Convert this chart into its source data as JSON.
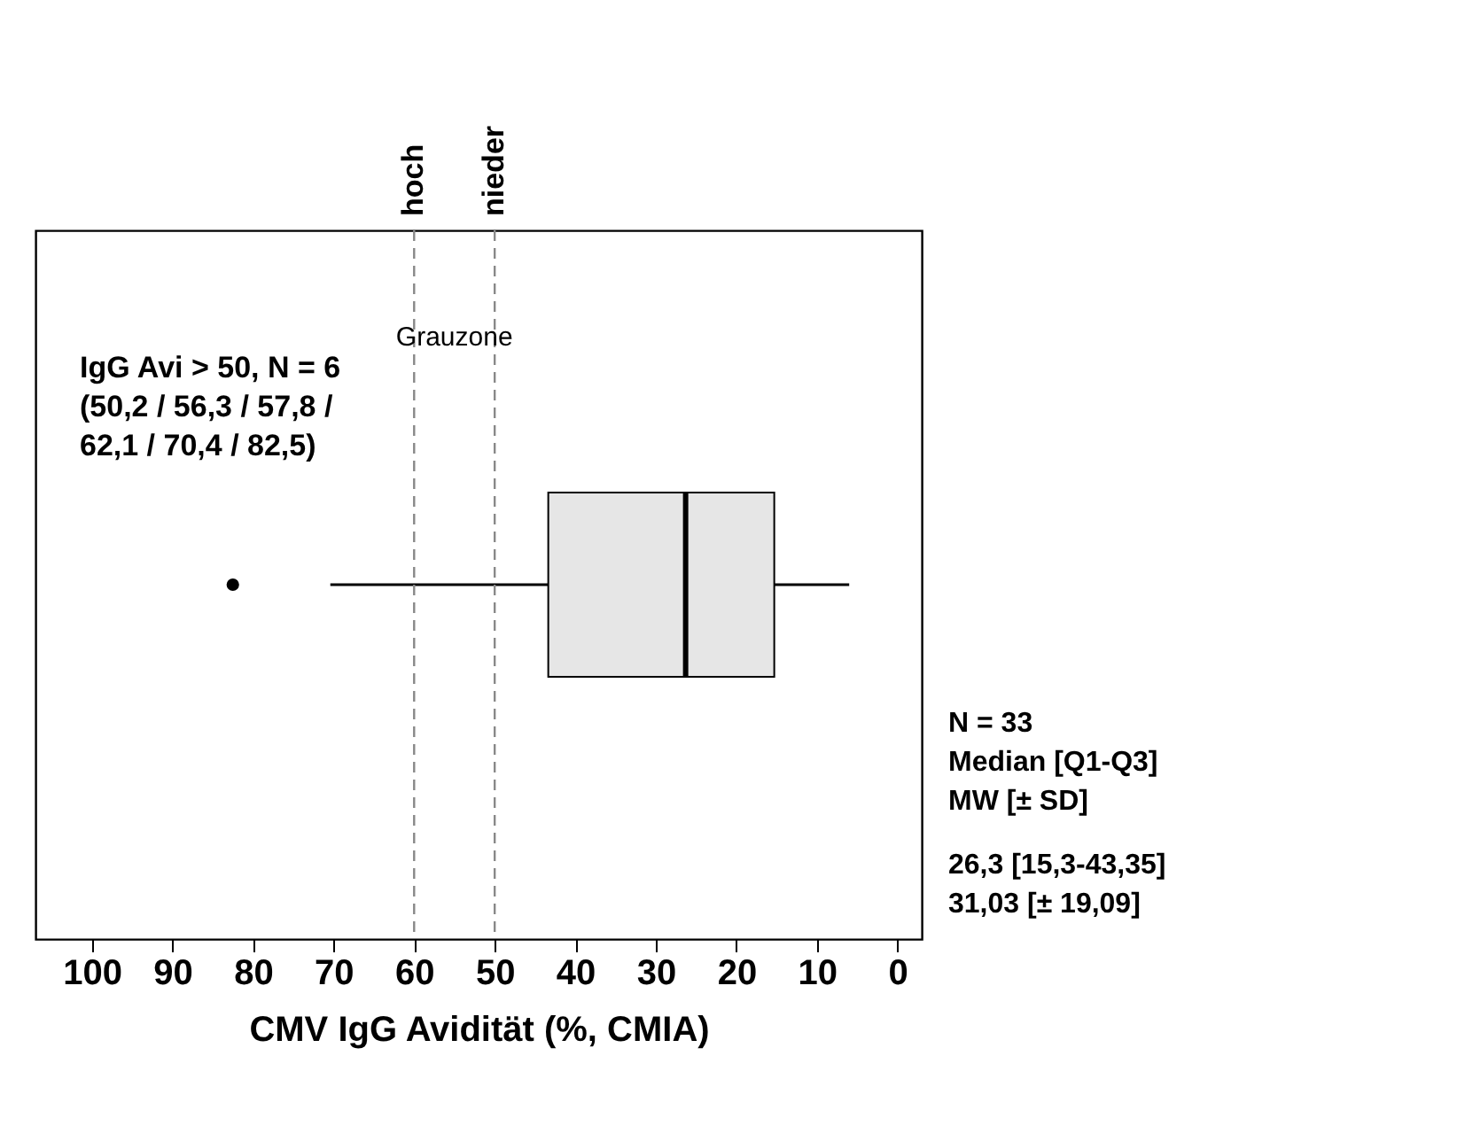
{
  "chart_data": {
    "type": "box",
    "orientation": "horizontal",
    "categories": [
      null
    ],
    "boxes": [
      {
        "low": 6,
        "q1": 15.3,
        "median": 26.3,
        "q3": 43.35,
        "high": 70.4,
        "outliers": [
          82.5
        ]
      }
    ],
    "color": "#e6e6e6",
    "xlabel": "CMV IgG Avidität (%, CMIA)",
    "xlim": [
      107,
      -3
    ],
    "xticks": [
      0,
      10,
      20,
      30,
      40,
      50,
      60,
      70,
      80,
      90,
      100
    ],
    "ref_lines": [
      {
        "axis": "x",
        "value": 60,
        "label": "hoch",
        "line_style": "dashed"
      },
      {
        "axis": "x",
        "value": 50,
        "label": "nieder",
        "line_style": "dashed"
      }
    ],
    "annotations": [
      "IgG Avi > 50, N = 6",
      "(50,2 / 56,3 / 57,8 /",
      "62,1 / 70,4 / 82,5)",
      "N = 33",
      "Median [Q1-Q3]",
      "MW [± SD]",
      "26,3 [15,3-43,35]",
      "31,03 [± 19,09]",
      "Grauzone"
    ],
    "grid": false
  }
}
